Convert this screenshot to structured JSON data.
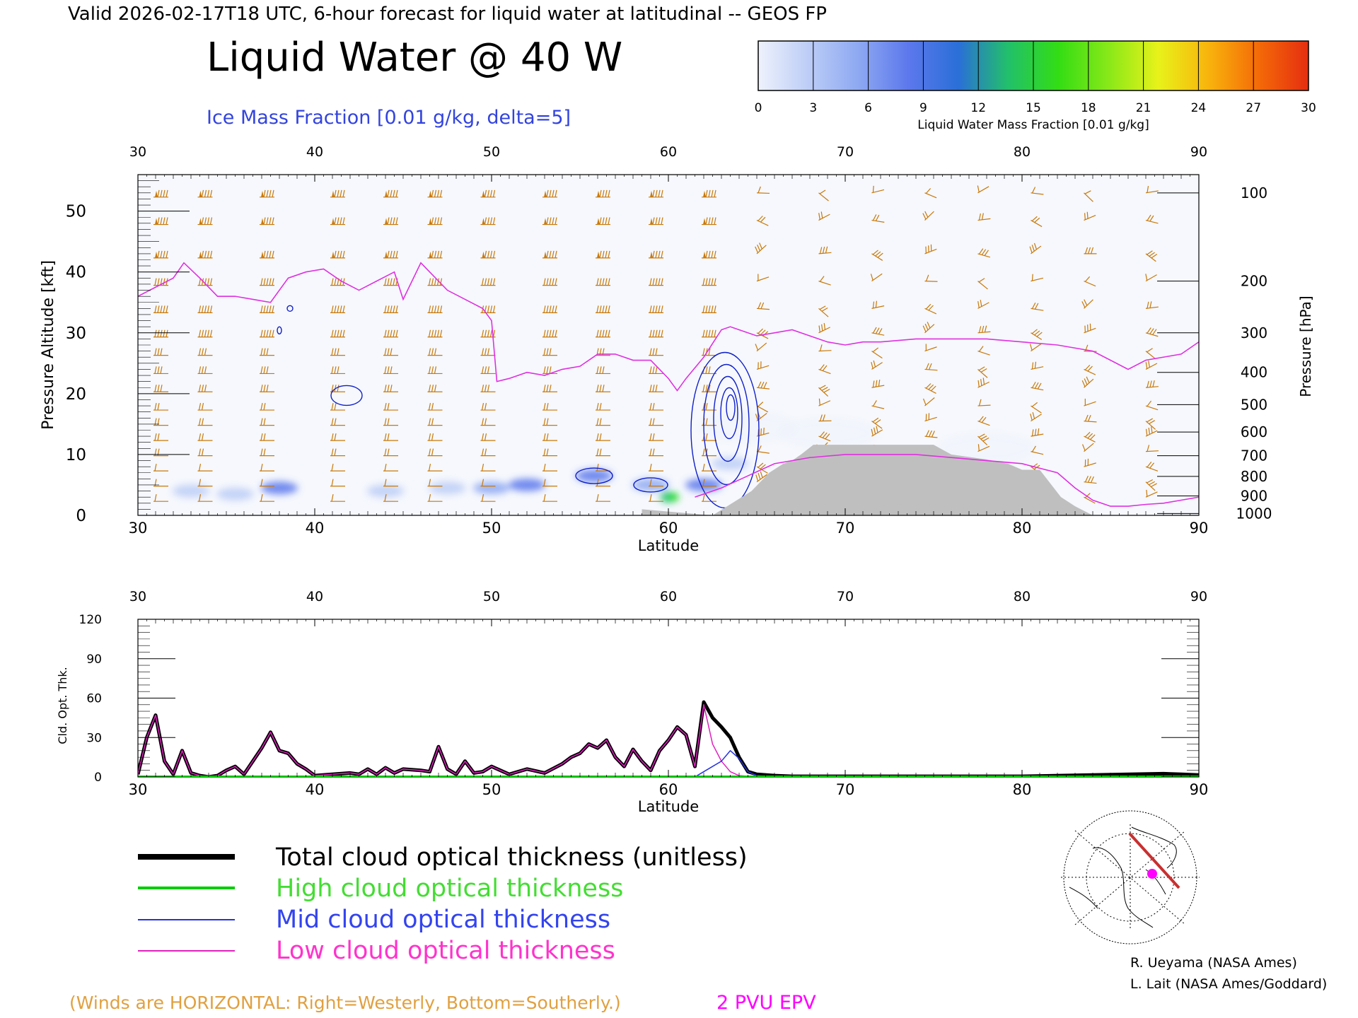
{
  "header": {
    "valid_line": "Valid 2026-02-17T18 UTC, 6-hour forecast for liquid water at latitudinal -- GEOS FP",
    "main_title": "Liquid Water @ 40 W",
    "contour_caption": "Ice Mass Fraction [0.01 g/kg, delta=5]"
  },
  "colorbar": {
    "ticks": [
      "0",
      "3",
      "6",
      "9",
      "12",
      "15",
      "18",
      "21",
      "24",
      "27",
      "30"
    ],
    "label": "Liquid Water Mass Fraction [0.01 g/kg]",
    "colors": [
      "#eef2fc",
      "#bccdf6",
      "#8ea9f2",
      "#5c78ec",
      "#2a6fd8",
      "#22c06a",
      "#33dd14",
      "#88e818",
      "#e8f21a",
      "#f8b40c",
      "#f46a08",
      "#e52e10"
    ]
  },
  "colors": {
    "total": "#000000",
    "high": "#00cc00",
    "mid": "#2233dd",
    "low": "#e020c0",
    "winds": "#c8780a",
    "epv": "#e030e0",
    "terrain": "#bfbfbf",
    "ice": "#1020c8"
  },
  "legend": {
    "total": "Total cloud optical thickness (unitless)",
    "high": "High cloud optical thickness",
    "mid": "Mid cloud optical thickness",
    "low": "Low cloud optical thickness"
  },
  "footer": {
    "winds_note": "(Winds are HORIZONTAL: Right=Westerly, Bottom=Southerly.)",
    "epv_label": "2 PVU EPV",
    "credit1": "R. Ueyama (NASA Ames)",
    "credit2": "L. Lait (NASA Ames/Goddard)"
  },
  "chart_data": [
    {
      "type": "heatmap",
      "name": "upper-panel",
      "xlabel": "Latitude",
      "ylabel": "Pressure Altitude [kft]",
      "ylabel_right": "Pressure [hPa]",
      "xlim": [
        30,
        90
      ],
      "ylim": [
        0,
        56
      ],
      "x_ticks": [
        30,
        40,
        50,
        60,
        70,
        80,
        90
      ],
      "y_ticks": [
        0,
        10,
        20,
        30,
        40,
        50
      ],
      "pressure_ticks": [
        {
          "label": "100",
          "kft": 53
        },
        {
          "label": "200",
          "kft": 38.5
        },
        {
          "label": "300",
          "kft": 30
        },
        {
          "label": "400",
          "kft": 23.5
        },
        {
          "label": "500",
          "kft": 18.2
        },
        {
          "label": "600",
          "kft": 13.7
        },
        {
          "label": "700",
          "kft": 9.8
        },
        {
          "label": "800",
          "kft": 6.4
        },
        {
          "label": "900",
          "kft": 3.2
        },
        {
          "label": "1000",
          "kft": 0.3
        }
      ],
      "epv_2pvu": {
        "lat": [
          30,
          31,
          32,
          32.6,
          33.5,
          34.5,
          35.5,
          36.5,
          37.5,
          38.5,
          39.5,
          40.5,
          41.5,
          42.5,
          43.5,
          44.5,
          45,
          45.5,
          46,
          46.5,
          47.5,
          48.5,
          49.5,
          50,
          50.3,
          51,
          52,
          53,
          54,
          55,
          56,
          57,
          58,
          59,
          60,
          60.5,
          61,
          62,
          63,
          63.5,
          64,
          65,
          66,
          67,
          68,
          69,
          70,
          71,
          72,
          74,
          76,
          78,
          80,
          82,
          84,
          86,
          87,
          89,
          90
        ],
        "kft": [
          36,
          37.5,
          39,
          41.5,
          39,
          36,
          36,
          35.5,
          35,
          39,
          40,
          40.5,
          38.5,
          37,
          38.5,
          40,
          35.5,
          38.5,
          41.5,
          40,
          37,
          35.5,
          34,
          32,
          22,
          22.5,
          23.5,
          23,
          24,
          24.5,
          26.5,
          26.5,
          25.5,
          25.5,
          22.5,
          20.5,
          22.5,
          26,
          30.5,
          31,
          30.5,
          29.5,
          30,
          30.5,
          29.5,
          28.5,
          28,
          28.5,
          28.5,
          29,
          29,
          29,
          28.5,
          28,
          27,
          24,
          25.5,
          26.5,
          28.5
        ]
      },
      "epv_low": {
        "lat": [
          61.5,
          63,
          64.5,
          66,
          68,
          70,
          72,
          74,
          76,
          78,
          80,
          82,
          83,
          84,
          85,
          86,
          87,
          88,
          89,
          90
        ],
        "kft": [
          3,
          4.5,
          6.5,
          8.5,
          9.5,
          10,
          10,
          10,
          9.5,
          9,
          8.5,
          7,
          4.5,
          2.5,
          1.5,
          1.5,
          1.8,
          2,
          2.5,
          3
        ]
      },
      "terrain": {
        "lat": [
          58.5,
          62.5,
          64.7,
          65.7,
          66.5,
          67,
          67.5,
          68.2,
          75,
          76,
          78,
          79.2,
          80,
          81,
          82.2,
          83,
          84,
          85,
          90
        ],
        "kft": [
          1,
          0,
          4,
          7,
          8.5,
          9,
          10,
          11.6,
          11.6,
          10,
          9.2,
          8.5,
          7.5,
          7.5,
          3,
          1.5,
          0,
          0,
          0
        ]
      },
      "liquid_water_blobs": [
        {
          "lat": 33,
          "kft": 4,
          "value": 4
        },
        {
          "lat": 35.5,
          "kft": 3.5,
          "value": 3
        },
        {
          "lat": 38,
          "kft": 4.5,
          "value": 8
        },
        {
          "lat": 44,
          "kft": 4,
          "value": 4
        },
        {
          "lat": 47.5,
          "kft": 4.5,
          "value": 4
        },
        {
          "lat": 50,
          "kft": 4.5,
          "value": 5
        },
        {
          "lat": 52,
          "kft": 5,
          "value": 7
        },
        {
          "lat": 55.8,
          "kft": 6.5,
          "value": 9
        },
        {
          "lat": 59,
          "kft": 5,
          "value": 6
        },
        {
          "lat": 60,
          "kft": 3,
          "value": 13
        },
        {
          "lat": 62,
          "kft": 5,
          "value": 8
        },
        {
          "lat": 63.5,
          "kft": 8.5,
          "value": 4
        },
        {
          "lat": 64.5,
          "kft": 14.5,
          "value": 1
        },
        {
          "lat": 69,
          "kft": 13.5,
          "value": 1
        },
        {
          "lat": 78,
          "kft": 11,
          "value": 1
        }
      ],
      "ice_contours": [
        {
          "lat": 38.6,
          "kft": 34
        },
        {
          "lat": 38.0,
          "kft": 30.4
        },
        {
          "lat": 41.8,
          "kft": 19.7
        },
        {
          "lat": 55.8,
          "kft": 6.5
        },
        {
          "lat": 59.0,
          "kft": 5.0
        },
        {
          "lat": 63.2,
          "kft": 14
        },
        {
          "lat": 62.3,
          "kft": 7.5
        }
      ],
      "wind_columns_lat": [
        31,
        33.5,
        37,
        41,
        44,
        46.5,
        49.5,
        53,
        56,
        59,
        62,
        65,
        68.5,
        71.5,
        74.5,
        77.5,
        80.5,
        83.5,
        87
      ]
    },
    {
      "type": "line",
      "name": "lower-panel",
      "xlabel": "Latitude",
      "ylabel": "Cld. Opt. Thk.",
      "xlim": [
        30,
        90
      ],
      "ylim": [
        0,
        120
      ],
      "x_ticks": [
        30,
        40,
        50,
        60,
        70,
        80,
        90
      ],
      "y_ticks": [
        0,
        30,
        60,
        90,
        120
      ],
      "series": [
        {
          "key": "total",
          "x": [
            30,
            30.5,
            31,
            31.5,
            32,
            32.5,
            33,
            33.5,
            34,
            34.5,
            35,
            35.5,
            36,
            36.5,
            37,
            37.5,
            38,
            38.5,
            39,
            39.5,
            40,
            41,
            42,
            42.5,
            43,
            43.5,
            44,
            44.5,
            45,
            46,
            46.5,
            47,
            47.5,
            48,
            48.5,
            49,
            49.5,
            50,
            51,
            52,
            53,
            54,
            54.5,
            55,
            55.5,
            56,
            56.5,
            57,
            57.5,
            58,
            58.5,
            59,
            59.5,
            60,
            60.5,
            61,
            61.5,
            62,
            62.5,
            63,
            63.5,
            64,
            64.5,
            65,
            66,
            67,
            70,
            80,
            88,
            89,
            90
          ],
          "y": [
            2,
            30,
            47,
            12,
            2,
            20,
            3,
            1,
            0,
            1,
            5,
            8,
            2,
            12,
            22,
            34,
            20,
            18,
            10,
            6,
            1,
            2,
            3,
            2,
            6,
            2,
            7,
            3,
            6,
            5,
            4,
            23,
            6,
            2,
            12,
            3,
            4,
            8,
            2,
            6,
            3,
            10,
            15,
            18,
            25,
            22,
            28,
            15,
            8,
            21,
            12,
            5,
            20,
            28,
            38,
            32,
            8,
            57,
            45,
            38,
            30,
            15,
            4,
            2,
            1,
            0.5,
            0.5,
            0.5,
            2.5,
            2,
            1.5
          ]
        },
        {
          "key": "mid",
          "x": [
            30,
            61.5,
            62,
            63,
            63.5,
            64,
            64.5,
            65,
            66,
            90
          ],
          "y": [
            0,
            0,
            4,
            12,
            20,
            14,
            4,
            1,
            0,
            0
          ]
        },
        {
          "key": "low",
          "x": [
            30,
            30.5,
            31,
            31.5,
            32,
            32.5,
            33,
            33.5,
            34,
            34.5,
            35,
            35.5,
            36,
            36.5,
            37,
            37.5,
            38,
            38.5,
            39,
            39.5,
            40,
            41,
            42,
            42.5,
            43,
            43.5,
            44,
            44.5,
            45,
            46,
            46.5,
            47,
            47.5,
            48,
            48.5,
            49,
            49.5,
            50,
            51,
            52,
            53,
            54,
            54.5,
            55,
            55.5,
            56,
            56.5,
            57,
            57.5,
            58,
            58.5,
            59,
            59.5,
            60,
            60.5,
            61,
            61.5,
            62,
            62.5,
            63,
            63.5,
            64,
            65,
            90
          ],
          "y": [
            2,
            30,
            47,
            12,
            2,
            20,
            3,
            1,
            0,
            1,
            5,
            8,
            2,
            12,
            22,
            34,
            20,
            18,
            10,
            6,
            1,
            2,
            3,
            2,
            6,
            2,
            7,
            3,
            6,
            5,
            4,
            23,
            6,
            2,
            12,
            3,
            4,
            8,
            2,
            6,
            3,
            10,
            15,
            18,
            25,
            22,
            28,
            15,
            8,
            21,
            12,
            5,
            20,
            28,
            38,
            32,
            8,
            55,
            25,
            12,
            4,
            1,
            0,
            0
          ]
        },
        {
          "key": "high",
          "x": [
            30,
            90
          ],
          "y": [
            0.3,
            0.3
          ]
        }
      ]
    }
  ],
  "inset_map": {
    "icon": "north-polar-map-icon"
  }
}
